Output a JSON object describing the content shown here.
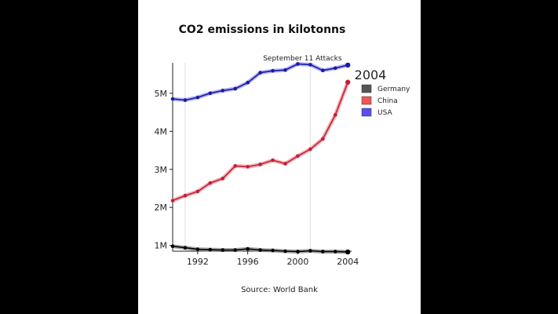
{
  "chart_data": {
    "type": "line",
    "title": "CO2 emissions in kilotonns",
    "source": "Source: World Bank",
    "legend_title": "2004",
    "legend_position": "right",
    "annotation": {
      "label": "September 11 Attacks",
      "x": 2001
    },
    "reference_lines_x": [
      1991,
      2001
    ],
    "xlim": [
      1990,
      2004.3
    ],
    "ylim": [
      850000,
      5800000
    ],
    "x_ticks": [
      1992,
      1996,
      2000,
      2004
    ],
    "x_tick_labels": [
      "1992",
      "1996",
      "2000",
      "2004"
    ],
    "y_ticks": [
      1000000,
      2000000,
      3000000,
      4000000,
      5000000
    ],
    "y_tick_labels": [
      "1M",
      "2M",
      "3M",
      "4M",
      "5M"
    ],
    "x": [
      1990,
      1991,
      1992,
      1993,
      1994,
      1995,
      1996,
      1997,
      1998,
      1999,
      2000,
      2001,
      2002,
      2003,
      2004
    ],
    "series": [
      {
        "name": "Germany",
        "color": "#000000",
        "band_color": "#888888",
        "values": [
          980000,
          940000,
          900000,
          890000,
          880000,
          880000,
          910000,
          880000,
          870000,
          850000,
          840000,
          860000,
          840000,
          840000,
          830000
        ]
      },
      {
        "name": "China",
        "color": "#c41e3a",
        "band_color": "#ef9a9a",
        "values": [
          2180000,
          2310000,
          2420000,
          2640000,
          2760000,
          3090000,
          3070000,
          3130000,
          3240000,
          3150000,
          3350000,
          3530000,
          3800000,
          4430000,
          5290000
        ]
      },
      {
        "name": "USA",
        "color": "#1a1aa8",
        "band_color": "#9999ee",
        "values": [
          4850000,
          4820000,
          4890000,
          5000000,
          5070000,
          5120000,
          5280000,
          5540000,
          5590000,
          5610000,
          5770000,
          5750000,
          5600000,
          5660000,
          5740000
        ]
      }
    ],
    "legend_items": [
      {
        "name": "Germany",
        "color": "#555555"
      },
      {
        "name": "China",
        "color": "#f05555"
      },
      {
        "name": "USA",
        "color": "#5a4ef0"
      }
    ]
  }
}
